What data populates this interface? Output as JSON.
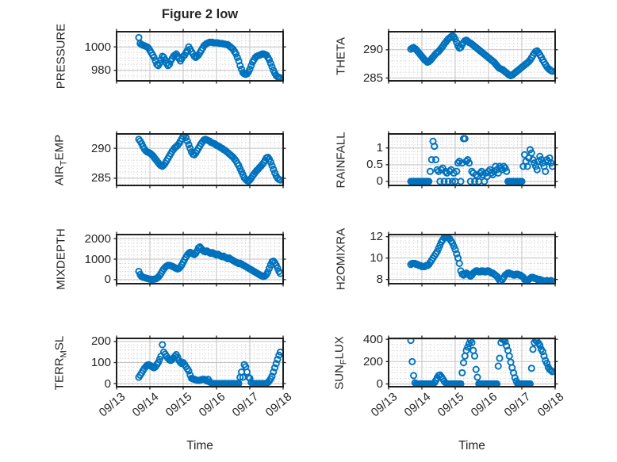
{
  "figure": {
    "title": "Figure 2 low",
    "xlabel": "Time",
    "x_tick_labels": [
      "09/13",
      "09/14",
      "09/15",
      "09/16",
      "09/17",
      "09/18"
    ],
    "x_range_days": [
      0,
      5
    ],
    "marker_color": "#0072BD",
    "axis_color": "#1f1f1f",
    "text_color": "#262626",
    "major_grid_color": "#c2c2c2",
    "minor_grid_color": "#cdcdcd",
    "background": "#ffffff",
    "sample_start_day": 0.667,
    "sample_step_day": 0.0416667
  },
  "chart_data": [
    {
      "type": "scatter",
      "name": "PRESSURE",
      "row": 0,
      "col": 0,
      "label_parts": [
        {
          "t": "PRESSURE"
        }
      ],
      "ylim": [
        971,
        1013
      ],
      "yticks": [
        980,
        1000
      ],
      "ytick_labels": [
        "980",
        "1000"
      ],
      "yminor": 5,
      "y": [
        1008,
        1003,
        1002,
        1001.5,
        1001,
        1000.5,
        1000,
        999,
        997,
        995,
        993,
        991,
        988,
        985,
        984,
        986,
        989,
        992,
        991,
        989,
        986,
        984,
        985,
        988,
        990,
        992,
        993,
        994,
        992,
        990,
        988,
        990,
        992,
        993,
        995,
        997,
        1000,
        998,
        996,
        994,
        992,
        991,
        992,
        993,
        995,
        997,
        999,
        1001,
        1002,
        1003,
        1003.5,
        1004,
        1004,
        1004,
        1003.5,
        1003.5,
        1003.5,
        1003.5,
        1003,
        1003,
        1003,
        1002.5,
        1002.5,
        1002,
        1002,
        1001,
        1000,
        999,
        998,
        996,
        994,
        991,
        988,
        984,
        981,
        978,
        977,
        976.5,
        977,
        978.5,
        981,
        984,
        987,
        989,
        991,
        992,
        992.5,
        993,
        993.5,
        994,
        994,
        993.5,
        993,
        991,
        989,
        986,
        983,
        980,
        977.5,
        975.5,
        974.5,
        974,
        973.5
      ]
    },
    {
      "type": "scatter",
      "name": "THETA",
      "row": 0,
      "col": 1,
      "label_parts": [
        {
          "t": "THETA"
        }
      ],
      "ylim": [
        284.5,
        293.2
      ],
      "yticks": [
        285,
        290
      ],
      "ytick_labels": [
        "285",
        "290"
      ],
      "yminor": 1,
      "y": [
        290.1,
        290.3,
        290.4,
        290.2,
        290,
        289.7,
        289.4,
        289.1,
        288.8,
        288.5,
        288.2,
        288,
        287.8,
        287.9,
        288.1,
        288.4,
        288.7,
        289,
        289.3,
        289.5,
        289.7,
        290,
        290.3,
        290.6,
        291,
        291.3,
        291.6,
        291.9,
        292.1,
        292.3,
        292.5,
        292.3,
        291.9,
        291.3,
        290.7,
        290.3,
        290.4,
        290.9,
        291.3,
        291.6,
        291.7,
        291.5,
        291.3,
        291.2,
        291,
        290.8,
        290.6,
        290.4,
        290.2,
        290,
        289.8,
        289.6,
        289.4,
        289.2,
        289,
        288.8,
        288.6,
        288.4,
        288.2,
        288,
        287.8,
        287.5,
        287.2,
        286.9,
        286.7,
        286.6,
        286.5,
        286.3,
        286.1,
        285.9,
        285.7,
        285.5,
        285.4,
        285.5,
        285.7,
        285.9,
        286.1,
        286.3,
        286.5,
        286.7,
        286.9,
        287.1,
        287.3,
        287.5,
        287.7,
        287.9,
        288.2,
        288.6,
        289,
        289.4,
        289.7,
        289.8,
        289.5,
        289.1,
        288.7,
        288.2,
        287.8,
        287.4,
        287,
        286.7,
        286.5,
        286.3,
        286.2
      ]
    },
    {
      "type": "scatter",
      "name": "AIR_TEMP",
      "row": 1,
      "col": 0,
      "label_parts": [
        {
          "t": "AIR"
        },
        {
          "t": "T",
          "sub": true
        },
        {
          "t": "EMP"
        }
      ],
      "ylim": [
        283.8,
        292.4
      ],
      "yticks": [
        285,
        290
      ],
      "ytick_labels": [
        "285",
        "290"
      ],
      "yminor": 1,
      "y": [
        291.5,
        291.2,
        290.8,
        290.3,
        289.9,
        289.6,
        289.4,
        289.3,
        289.2,
        289,
        288.8,
        288.5,
        288.2,
        287.9,
        287.6,
        287.3,
        287.1,
        287,
        287.2,
        287.5,
        287.9,
        288.3,
        288.7,
        289.1,
        289.5,
        289.8,
        290.1,
        290.3,
        290.5,
        290.8,
        291.2,
        291.6,
        292,
        292.3,
        291.8,
        291.2,
        290.6,
        290,
        289.4,
        289,
        288.9,
        289.2,
        289.6,
        290,
        290.4,
        290.8,
        291.1,
        291.4,
        291.5,
        291.4,
        291.3,
        291.2,
        291,
        290.9,
        290.8,
        290.7,
        290.5,
        290.4,
        290.3,
        290.1,
        290,
        289.8,
        289.7,
        289.5,
        289.3,
        289.1,
        288.9,
        288.7,
        288.5,
        288.2,
        287.9,
        287.5,
        287.1,
        286.6,
        286.1,
        285.6,
        285.1,
        284.8,
        284.6,
        284.5,
        284.7,
        285,
        285.4,
        285.7,
        286,
        286.3,
        286.5,
        286.8,
        287,
        287.3,
        287.6,
        288,
        288.4,
        288.5,
        288.2,
        287.7,
        287.1,
        286.5,
        285.9,
        285.4,
        285,
        284.8,
        284.7
      ]
    },
    {
      "type": "scatter",
      "name": "RAINFALL",
      "row": 1,
      "col": 1,
      "label_parts": [
        {
          "t": "RAINFALL"
        }
      ],
      "ylim": [
        -0.12,
        1.42
      ],
      "yticks": [
        0,
        0.5,
        1
      ],
      "ytick_labels": [
        "0",
        "0.5",
        "1"
      ],
      "yminor": 0.1,
      "y": [
        0,
        0,
        0,
        0,
        0,
        0,
        0,
        0,
        0,
        0,
        0,
        0,
        0,
        0,
        0.3,
        0.65,
        1.2,
        1.05,
        0.65,
        0.35,
        0.3,
        0,
        0.35,
        0.4,
        0,
        0.3,
        0.25,
        0,
        0.3,
        0.35,
        0,
        0.25,
        0,
        0.3,
        0.55,
        0.6,
        0,
        0.55,
        1.28,
        1.28,
        0.6,
        0.65,
        0.55,
        0,
        0.3,
        0.25,
        0,
        0.2,
        0.15,
        0,
        0.25,
        0.3,
        0.2,
        0,
        0.25,
        0.15,
        0.3,
        0.35,
        0.25,
        0.2,
        0.3,
        0.45,
        0.35,
        0.25,
        0.45,
        0.4,
        0.35,
        0.45,
        0.4,
        0.3,
        0,
        0,
        0,
        0,
        0,
        0,
        0,
        0,
        0,
        0,
        0,
        0.45,
        0.8,
        0.6,
        0.45,
        0.7,
        0.95,
        0.85,
        0.65,
        0.55,
        0.45,
        0.35,
        0.6,
        0.75,
        0.65,
        0.55,
        0.45,
        0.3,
        0.65,
        0.6,
        0.7,
        0.55,
        0.45
      ]
    },
    {
      "type": "scatter",
      "name": "MIXDEPTH",
      "row": 2,
      "col": 0,
      "label_parts": [
        {
          "t": "MIXDEPTH"
        }
      ],
      "ylim": [
        -200,
        2200
      ],
      "yticks": [
        0,
        1000,
        2000
      ],
      "ytick_labels": [
        "0",
        "1000",
        "2000"
      ],
      "yminor": 200,
      "y": [
        400,
        250,
        150,
        120,
        100,
        80,
        60,
        40,
        20,
        10,
        10,
        20,
        30,
        60,
        120,
        200,
        300,
        420,
        520,
        600,
        660,
        700,
        700,
        680,
        650,
        620,
        580,
        550,
        520,
        550,
        620,
        720,
        850,
        980,
        1100,
        1200,
        1280,
        1330,
        1300,
        1260,
        1220,
        1280,
        1400,
        1550,
        1600,
        1520,
        1440,
        1380,
        1350,
        1400,
        1360,
        1310,
        1280,
        1320,
        1280,
        1230,
        1200,
        1240,
        1200,
        1160,
        1120,
        1150,
        1100,
        1060,
        1020,
        1060,
        1010,
        970,
        930,
        890,
        850,
        820,
        780,
        800,
        760,
        720,
        680,
        640,
        600,
        560,
        520,
        480,
        440,
        400,
        360,
        320,
        280,
        240,
        200,
        170,
        150,
        180,
        250,
        380,
        550,
        720,
        870,
        900,
        820,
        700,
        560,
        400,
        300
      ]
    },
    {
      "type": "scatter",
      "name": "H2OMIXRA",
      "row": 2,
      "col": 1,
      "label_parts": [
        {
          "t": "H2OMIXRA"
        }
      ],
      "ylim": [
        7.6,
        12.2
      ],
      "yticks": [
        8,
        10,
        12
      ],
      "ytick_labels": [
        "8",
        "10",
        "12"
      ],
      "yminor": 0.5,
      "y": [
        9.4,
        9.5,
        9.5,
        9.5,
        9.4,
        9.4,
        9.3,
        9.3,
        9.2,
        9.2,
        9.2,
        9.3,
        9.3,
        9.4,
        9.6,
        9.8,
        10,
        10.2,
        10.4,
        10.6,
        10.9,
        11.2,
        11.5,
        11.7,
        11.9,
        12,
        12,
        11.9,
        11.8,
        11.6,
        11.4,
        11.1,
        10.8,
        10.4,
        10,
        9.5,
        8.8,
        8.5,
        8.4,
        8.5,
        8.6,
        8.5,
        8.4,
        8.3,
        8.4,
        8.6,
        8.7,
        8.8,
        8.8,
        8.7,
        8.7,
        8.8,
        8.8,
        8.7,
        8.7,
        8.8,
        8.8,
        8.7,
        8.6,
        8.6,
        8.5,
        8.4,
        8.3,
        8.1,
        7.9,
        7.8,
        8,
        8.2,
        8.4,
        8.5,
        8.6,
        8.6,
        8.5,
        8.5,
        8.4,
        8.4,
        8.5,
        8.5,
        8.4,
        8.4,
        8.3,
        8.2,
        8,
        7.9,
        7.8,
        8,
        8.1,
        8.2,
        8.2,
        8.1,
        8.1,
        8,
        8,
        8,
        7.9,
        7.9,
        7.8,
        7.8,
        7.9,
        7.8,
        7.8,
        7.9,
        7.8
      ]
    },
    {
      "type": "scatter",
      "name": "TERR_MSL",
      "row": 3,
      "col": 0,
      "label_parts": [
        {
          "t": "TERR"
        },
        {
          "t": "M",
          "sub": true
        },
        {
          "t": "SL"
        }
      ],
      "ylim": [
        -15,
        215
      ],
      "yticks": [
        0,
        100,
        200
      ],
      "ytick_labels": [
        "0",
        "100",
        "200"
      ],
      "yminor": 20,
      "y": [
        30,
        40,
        50,
        62,
        72,
        80,
        87,
        90,
        87,
        82,
        78,
        75,
        80,
        90,
        100,
        115,
        130,
        185,
        150,
        140,
        130,
        120,
        113,
        110,
        115,
        122,
        130,
        138,
        125,
        110,
        100,
        95,
        100,
        90,
        80,
        70,
        60,
        40,
        25,
        22,
        20,
        18,
        16,
        15,
        16,
        18,
        20,
        20,
        18,
        12,
        20,
        8,
        4,
        0,
        0,
        0,
        0,
        0,
        0,
        0,
        0,
        0,
        0,
        0,
        0,
        0,
        0,
        0,
        0,
        0,
        0,
        0,
        0,
        30,
        55,
        30,
        90,
        80,
        55,
        30,
        25,
        5,
        0,
        0,
        0,
        0,
        0,
        0,
        0,
        0,
        0,
        0,
        0,
        5,
        12,
        22,
        35,
        55,
        75,
        95,
        115,
        135,
        150
      ]
    },
    {
      "type": "scatter",
      "name": "SUN_FLUX",
      "row": 3,
      "col": 1,
      "label_parts": [
        {
          "t": "SUN"
        },
        {
          "t": "F",
          "sub": true
        },
        {
          "t": "LUX"
        }
      ],
      "ylim": [
        -25,
        408
      ],
      "yticks": [
        0,
        200,
        400
      ],
      "ytick_labels": [
        "0",
        "200",
        "400"
      ],
      "yminor": 50,
      "y": [
        390,
        200,
        75,
        10,
        0,
        0,
        0,
        0,
        0,
        0,
        0,
        0,
        0,
        0,
        0,
        0,
        0,
        10,
        30,
        55,
        75,
        80,
        65,
        45,
        25,
        10,
        0,
        0,
        0,
        0,
        0,
        0,
        0,
        0,
        0,
        0,
        0,
        100,
        190,
        250,
        300,
        330,
        360,
        390,
        370,
        300,
        250,
        130,
        60,
        0,
        0,
        0,
        0,
        0,
        0,
        0,
        0,
        0,
        0,
        0,
        0,
        0,
        0,
        160,
        230,
        370,
        400,
        395,
        380,
        340,
        300,
        250,
        195,
        145,
        100,
        55,
        25,
        0,
        0,
        0,
        0,
        0,
        0,
        0,
        0,
        0,
        0,
        140,
        310,
        370,
        390,
        380,
        365,
        345,
        310,
        290,
        250,
        210,
        185,
        150,
        130,
        120,
        110
      ]
    }
  ]
}
